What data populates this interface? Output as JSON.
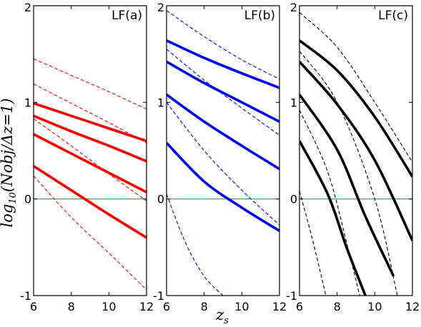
{
  "chart_data": {
    "type": "line",
    "xlabel": "z_s",
    "ylabel": "log_10(Nobj/Δz=1)",
    "xlim": [
      6,
      12
    ],
    "ylim": [
      -1,
      2
    ],
    "x_ticks": [
      "6",
      "8",
      "10",
      "12"
    ],
    "y_ticks": [
      "-1",
      "0",
      "1",
      "2"
    ],
    "reference_line": {
      "y": 0,
      "color": "#3a9a3a"
    },
    "panels": [
      {
        "title": "LF(a)",
        "color": "#ff0000",
        "solid": [
          {
            "x": [
              6,
              8,
              10,
              12
            ],
            "y": [
              0.99,
              0.86,
              0.73,
              0.6
            ]
          },
          {
            "x": [
              6,
              8,
              10,
              12
            ],
            "y": [
              0.86,
              0.7,
              0.55,
              0.39
            ]
          },
          {
            "x": [
              6,
              8,
              10,
              12
            ],
            "y": [
              0.67,
              0.47,
              0.27,
              0.07
            ]
          },
          {
            "x": [
              6,
              8,
              10,
              12
            ],
            "y": [
              0.34,
              0.09,
              -0.16,
              -0.4
            ]
          }
        ],
        "dashed": [
          {
            "x": [
              6,
              8,
              10,
              12
            ],
            "y": [
              1.45,
              1.28,
              1.11,
              0.93
            ]
          },
          {
            "x": [
              6,
              8,
              10,
              12
            ],
            "y": [
              1.19,
              0.99,
              0.79,
              0.58
            ]
          },
          {
            "x": [
              6,
              8,
              10,
              12
            ],
            "y": [
              0.83,
              0.55,
              0.26,
              -0.02
            ]
          },
          {
            "x": [
              6,
              8,
              10,
              12
            ],
            "y": [
              0.24,
              -0.19,
              -0.56,
              -0.94
            ]
          }
        ]
      },
      {
        "title": "LF(b)",
        "color": "#0000ff",
        "solid": [
          {
            "x": [
              6,
              8,
              10,
              12
            ],
            "y": [
              1.64,
              1.46,
              1.3,
              1.15
            ]
          },
          {
            "x": [
              6,
              8,
              10,
              12
            ],
            "y": [
              1.42,
              1.2,
              1.0,
              0.8
            ]
          },
          {
            "x": [
              6,
              8,
              10,
              12
            ],
            "y": [
              1.08,
              0.8,
              0.55,
              0.31
            ]
          },
          {
            "x": [
              6,
              8,
              10,
              12
            ],
            "y": [
              0.58,
              0.18,
              -0.09,
              -0.33
            ]
          }
        ],
        "dashed": [
          {
            "x": [
              6,
              8,
              10,
              12
            ],
            "y": [
              1.95,
              1.68,
              1.44,
              1.24
            ]
          },
          {
            "x": [
              6,
              8,
              10,
              12
            ],
            "y": [
              1.55,
              1.23,
              0.94,
              0.66
            ]
          },
          {
            "x": [
              6,
              8,
              10,
              12
            ],
            "y": [
              1.0,
              0.5,
              0.09,
              -0.27
            ]
          },
          {
            "x": [
              6,
              7,
              8,
              9
            ],
            "y": [
              0.05,
              -0.45,
              -0.8,
              -1.0
            ]
          }
        ]
      },
      {
        "title": "LF(c)",
        "color": "#000000",
        "solid": [
          {
            "x": [
              6,
              8,
              10,
              12
            ],
            "y": [
              1.64,
              1.33,
              0.85,
              0.23
            ]
          },
          {
            "x": [
              6,
              8,
              10,
              12
            ],
            "y": [
              1.42,
              0.98,
              0.4,
              -0.43
            ]
          },
          {
            "x": [
              6,
              8,
              9.5,
              11
            ],
            "y": [
              1.08,
              0.51,
              -0.18,
              -0.8
            ]
          },
          {
            "x": [
              6,
              7.5,
              8.5,
              9.5
            ],
            "y": [
              0.6,
              0.05,
              -0.5,
              -1.0
            ]
          }
        ],
        "dashed": [
          {
            "x": [
              6,
              8,
              10,
              12
            ],
            "y": [
              1.93,
              1.57,
              1.0,
              0.38
            ]
          },
          {
            "x": [
              6,
              8,
              10,
              11.2
            ],
            "y": [
              1.53,
              1.0,
              0.0,
              -1.0
            ]
          },
          {
            "x": [
              6,
              7.5,
              8.6,
              9.2
            ],
            "y": [
              0.92,
              0.28,
              -0.53,
              -1.0
            ]
          },
          {
            "x": [
              6,
              6.6,
              7.1,
              7.4
            ],
            "y": [
              0.08,
              -0.35,
              -0.75,
              -1.0
            ]
          }
        ]
      }
    ]
  }
}
